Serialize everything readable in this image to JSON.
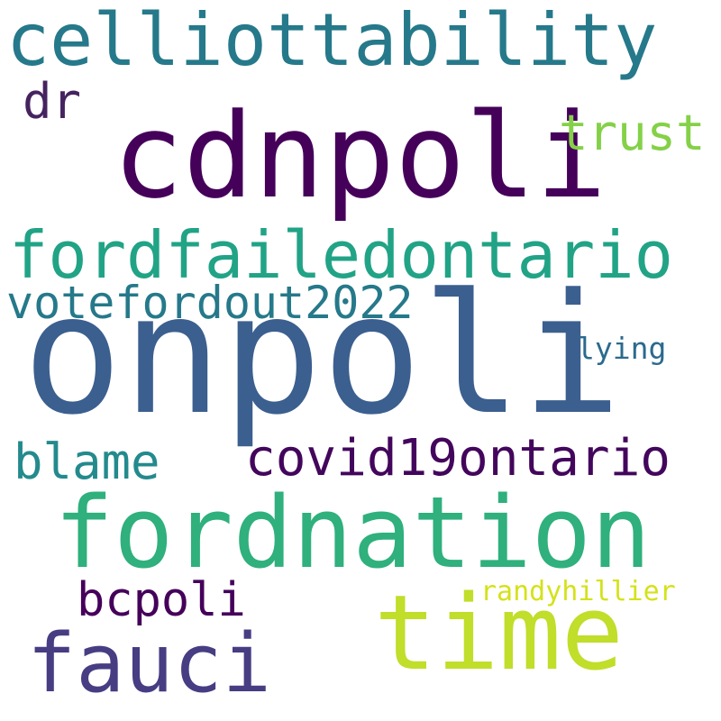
{
  "words": {
    "onpoli": "onpoli",
    "cdnpoli": "cdnpoli",
    "fordnation": "fordnation",
    "time": "time",
    "celliottability": "celliottability",
    "fauci": "fauci",
    "fordfailedontario": "fordfailedontario",
    "covid19ontario": "covid19ontario",
    "trust": "trust",
    "votefordout2022": "votefordout2022",
    "dr": "dr",
    "blame": "blame",
    "bcpoli": "bcpoli",
    "randyhillier": "randyhillier",
    "lying": "lying"
  },
  "colors": {
    "background": "#ffffff",
    "dark_purple": "#45005a",
    "blue": "#3b5f8f",
    "teal": "#25798a",
    "green": "#2fb07c",
    "lime": "#c0de2a",
    "yellow": "#d4e21a"
  }
}
